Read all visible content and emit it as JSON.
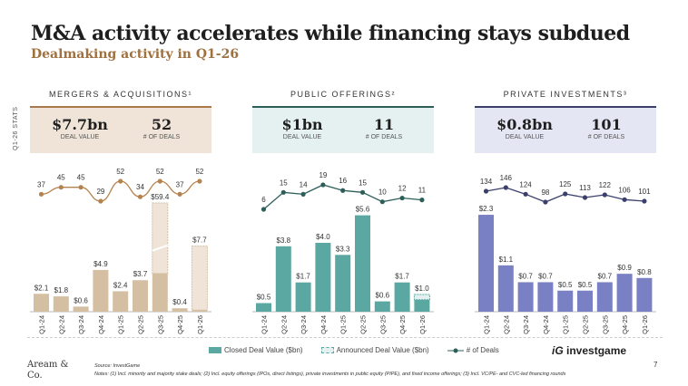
{
  "title": "M&A activity accelerates while financing stays subdued",
  "subtitle": "Dealmaking activity in Q1-26",
  "side_label": "Q1-26 STATS",
  "panels": [
    {
      "heading": "MERGERS & ACQUISITIONS¹",
      "deal_value": "$7.7bn",
      "deal_value_label": "DEAL VALUE",
      "deals": "52",
      "deals_label": "# OF DEALS",
      "colors": {
        "bar": "#d4bfa3",
        "line": "#b5834f",
        "header_bg": "#efe4d7",
        "border": "#a8784a"
      }
    },
    {
      "heading": "PUBLIC OFFERINGS²",
      "deal_value": "$1bn",
      "deal_value_label": "DEAL VALUE",
      "deals": "11",
      "deals_label": "# OF DEALS",
      "colors": {
        "bar": "#5ba8a2",
        "line": "#2d5f5a",
        "header_bg": "#e4f1f0",
        "border": "#2d5f5a"
      }
    },
    {
      "heading": "PRIVATE INVESTMENTS³",
      "deal_value": "$0.8bn",
      "deal_value_label": "DEAL VALUE",
      "deals": "101",
      "deals_label": "# OF DEALS",
      "colors": {
        "bar": "#7a80c4",
        "line": "#3a3f6b",
        "header_bg": "#e5e6f3",
        "border": "#3a3f6b"
      }
    }
  ],
  "chart_data": [
    {
      "type": "bar",
      "title": "MERGERS & ACQUISITIONS¹",
      "categories": [
        "Q1-24",
        "Q2-24",
        "Q3-24",
        "Q4-24",
        "Q1-25",
        "Q2-25",
        "Q3-25",
        "Q4-25",
        "Q1-26"
      ],
      "series": [
        {
          "name": "Closed Deal Value ($bn)",
          "values": [
            2.1,
            1.8,
            0.6,
            4.9,
            2.4,
            3.7,
            4.5,
            0.4,
            0.2
          ]
        },
        {
          "name": "Announced Deal Value ($bn)",
          "values": [
            0,
            0,
            0,
            0,
            0,
            0,
            54.9,
            0,
            7.5
          ]
        },
        {
          "name": "# of Deals",
          "type": "line",
          "values": [
            37,
            45,
            45,
            29,
            52,
            34,
            52,
            37,
            52
          ]
        }
      ],
      "labels": [
        "$2.1",
        "$1.8",
        "$0.6",
        "$4.9",
        "$2.4",
        "$3.7",
        "$59.4",
        "$0.4",
        "$7.7"
      ],
      "axis_break": "Q3-25"
    },
    {
      "type": "bar",
      "title": "PUBLIC OFFERINGS²",
      "categories": [
        "Q1-24",
        "Q2-24",
        "Q3-24",
        "Q4-24",
        "Q1-25",
        "Q2-25",
        "Q3-25",
        "Q4-25",
        "Q1-26"
      ],
      "series": [
        {
          "name": "Closed Deal Value ($bn)",
          "values": [
            0.5,
            3.8,
            1.7,
            4.0,
            3.3,
            5.6,
            0.6,
            1.7,
            0.7
          ]
        },
        {
          "name": "Announced Deal Value ($bn)",
          "values": [
            0,
            0,
            0,
            0,
            0,
            0,
            0,
            0,
            0.3
          ]
        },
        {
          "name": "# of Deals",
          "type": "line",
          "values": [
            6,
            15,
            14,
            19,
            16,
            15,
            10,
            12,
            11
          ]
        }
      ],
      "labels": [
        "$0.5",
        "$3.8",
        "$1.7",
        "$4.0",
        "$3.3",
        "$5.6",
        "$0.6",
        "$1.7",
        "$1.0"
      ]
    },
    {
      "type": "bar",
      "title": "PRIVATE INVESTMENTS³",
      "categories": [
        "Q1-24",
        "Q2-24",
        "Q3-24",
        "Q4-24",
        "Q1-25",
        "Q2-25",
        "Q3-25",
        "Q4-25",
        "Q1-26"
      ],
      "series": [
        {
          "name": "Closed Deal Value ($bn)",
          "values": [
            2.3,
            1.1,
            0.7,
            0.7,
            0.5,
            0.5,
            0.7,
            0.9,
            0.8
          ]
        },
        {
          "name": "Announced Deal Value ($bn)",
          "values": [
            0,
            0,
            0,
            0,
            0,
            0,
            0,
            0,
            0
          ]
        },
        {
          "name": "# of Deals",
          "type": "line",
          "values": [
            134,
            146,
            124,
            98,
            125,
            113,
            122,
            106,
            101
          ]
        }
      ],
      "labels": [
        "$2.3",
        "$1.1",
        "$0.7",
        "$0.7",
        "$0.5",
        "$0.5",
        "$0.7",
        "$0.9",
        "$0.8"
      ]
    }
  ],
  "legend": {
    "closed": "Closed Deal Value ($bn)",
    "announced": "Announced Deal Value ($bn)",
    "deals": "# of Deals"
  },
  "logo": "investgame",
  "brand": "Aream & Co.",
  "source": "Source: InvestGame",
  "notes": "Notes: (1) Incl. minority and majority stake deals; (2) Incl. equity offerings (IPOs, direct listings), private investments in public equity (PIPE), and fixed income offerings; (3) Incl. VC/PE- and CVC-led financing rounds",
  "page_number": "7"
}
